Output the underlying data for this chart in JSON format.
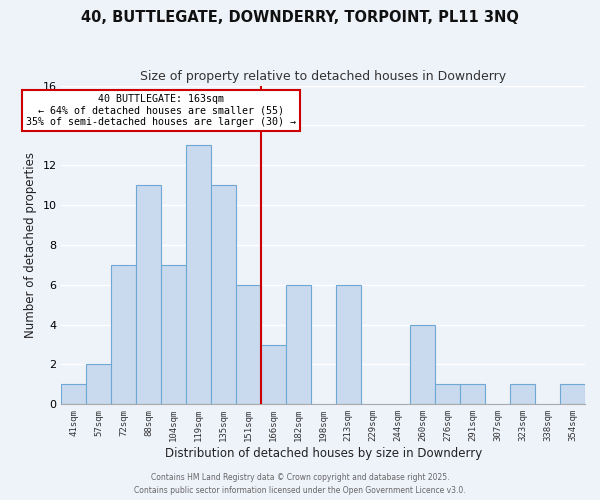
{
  "title": "40, BUTTLEGATE, DOWNDERRY, TORPOINT, PL11 3NQ",
  "subtitle": "Size of property relative to detached houses in Downderry",
  "xlabel": "Distribution of detached houses by size in Downderry",
  "ylabel": "Number of detached properties",
  "bar_labels": [
    "41sqm",
    "57sqm",
    "72sqm",
    "88sqm",
    "104sqm",
    "119sqm",
    "135sqm",
    "151sqm",
    "166sqm",
    "182sqm",
    "198sqm",
    "213sqm",
    "229sqm",
    "244sqm",
    "260sqm",
    "276sqm",
    "291sqm",
    "307sqm",
    "323sqm",
    "338sqm",
    "354sqm"
  ],
  "bar_values": [
    1,
    2,
    7,
    11,
    7,
    13,
    11,
    6,
    3,
    6,
    0,
    6,
    0,
    0,
    4,
    1,
    1,
    0,
    1,
    0,
    1
  ],
  "bar_color": "#c9d9ee",
  "bar_edgecolor": "#6fa8d4",
  "vline_x": 7.5,
  "vline_color": "#cc0000",
  "annotation_title": "40 BUTTLEGATE: 163sqm",
  "annotation_line1": "← 64% of detached houses are smaller (55)",
  "annotation_line2": "35% of semi-detached houses are larger (30) →",
  "annotation_box_edgecolor": "#cc0000",
  "ylim": [
    0,
    16
  ],
  "yticks": [
    0,
    2,
    4,
    6,
    8,
    10,
    12,
    14,
    16
  ],
  "background_color": "#eef2f9",
  "grid_color": "#ffffff",
  "footer1": "Contains HM Land Registry data © Crown copyright and database right 2025.",
  "footer2": "Contains public sector information licensed under the Open Government Licence v3.0."
}
